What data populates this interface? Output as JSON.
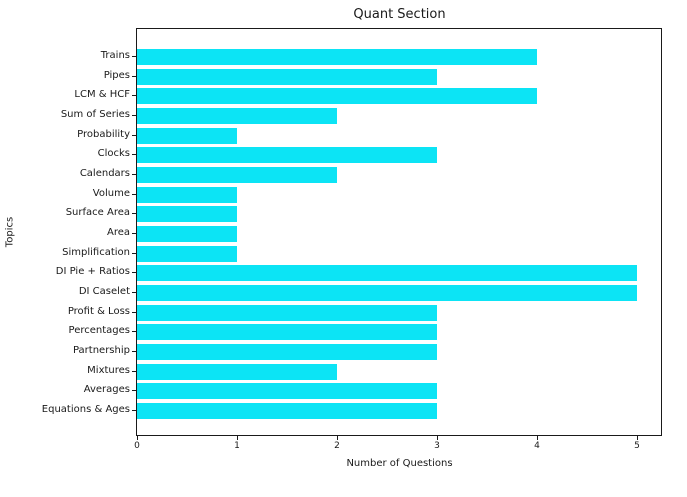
{
  "chart_data": {
    "type": "bar",
    "orientation": "horizontal",
    "title": "Quant Section",
    "xlabel": "Number of Questions",
    "ylabel": "Topics",
    "categories": [
      "Trains",
      "Pipes",
      "LCM & HCF",
      "Sum of Series",
      "Probability",
      "Clocks",
      "Calendars",
      "Volume",
      "Surface Area",
      "Area",
      "Simplification",
      "DI Pie + Ratios",
      "DI Caselet",
      "Profit & Loss",
      "Percentages",
      "Partnership",
      "Mixtures",
      "Averages",
      "Equations & Ages"
    ],
    "values": [
      4,
      3,
      4,
      2,
      1,
      3,
      2,
      1,
      1,
      1,
      1,
      5,
      5,
      3,
      3,
      3,
      2,
      3,
      3
    ],
    "xticks": [
      0,
      1,
      2,
      3,
      4,
      5
    ],
    "xlim": [
      0,
      5.25
    ],
    "grid": false,
    "legend": null,
    "bar_color": "#0ce4f5",
    "text_color": "#1a1a1a"
  }
}
